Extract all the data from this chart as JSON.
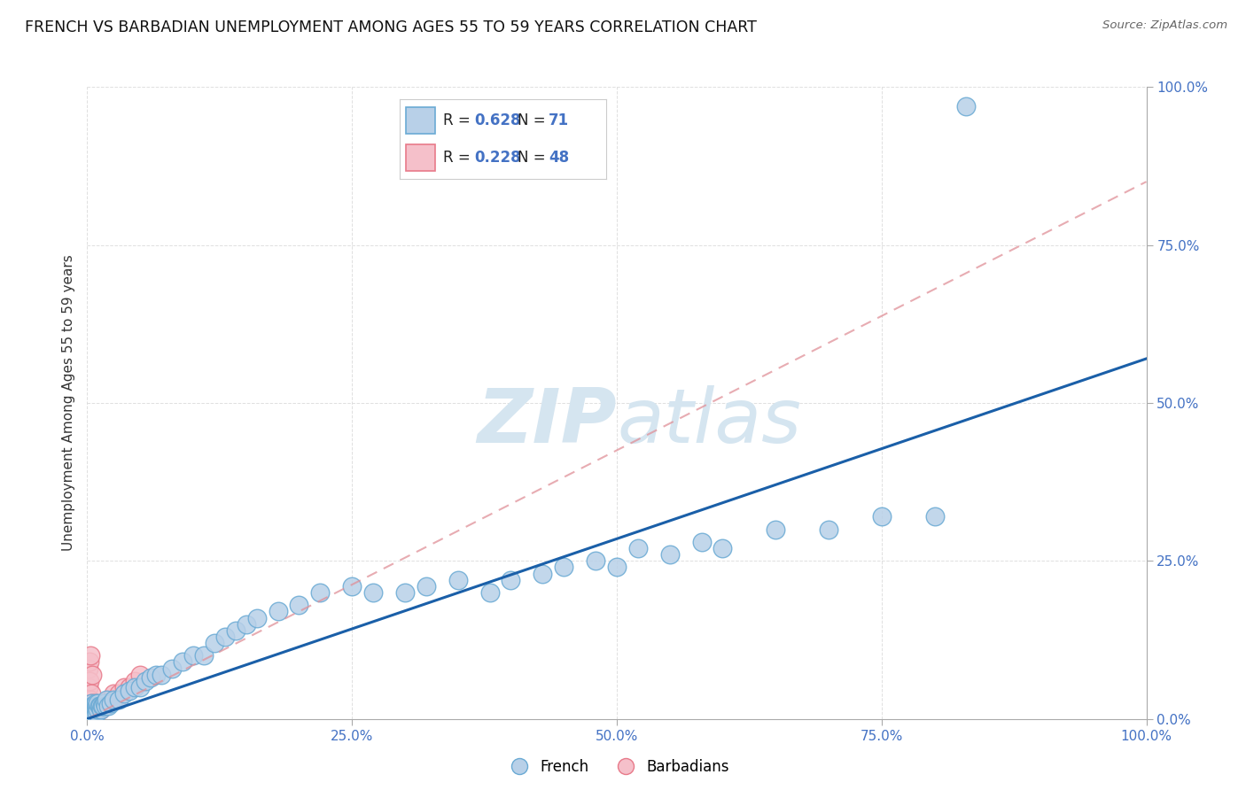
{
  "title": "FRENCH VS BARBADIAN UNEMPLOYMENT AMONG AGES 55 TO 59 YEARS CORRELATION CHART",
  "source": "Source: ZipAtlas.com",
  "ylabel": "Unemployment Among Ages 55 to 59 years",
  "xlim": [
    0.0,
    1.0
  ],
  "ylim": [
    0.0,
    1.0
  ],
  "xtick_positions": [
    0.0,
    0.25,
    0.5,
    0.75,
    1.0
  ],
  "xtick_labels": [
    "0.0%",
    "25.0%",
    "50.0%",
    "75.0%",
    "100.0%"
  ],
  "ytick_positions": [
    0.0,
    0.25,
    0.5,
    0.75,
    1.0
  ],
  "ytick_labels": [
    "0.0%",
    "25.0%",
    "50.0%",
    "75.0%",
    "100.0%"
  ],
  "french_color": "#b8d0e8",
  "french_edge_color": "#6aaad4",
  "barbadian_color": "#f5c0ca",
  "barbadian_edge_color": "#e87a8a",
  "french_R": 0.628,
  "french_N": 71,
  "barbadian_R": 0.228,
  "barbadian_N": 48,
  "french_line_color": "#1a5fa8",
  "barbadian_line_color": "#e09098",
  "watermark_color": "#d5e5f0",
  "background_color": "#ffffff",
  "grid_color": "#d8d8d8",
  "title_fontsize": 12.5,
  "axis_label_fontsize": 11,
  "tick_fontsize": 11,
  "french_line_slope": 0.57,
  "french_line_intercept": 0.0,
  "barbadian_line_slope": 0.85,
  "barbadian_line_intercept": 0.0,
  "french_scatter_x": [
    0.001,
    0.002,
    0.003,
    0.003,
    0.004,
    0.004,
    0.005,
    0.005,
    0.005,
    0.006,
    0.006,
    0.007,
    0.007,
    0.008,
    0.008,
    0.009,
    0.009,
    0.01,
    0.01,
    0.011,
    0.012,
    0.013,
    0.014,
    0.015,
    0.016,
    0.017,
    0.018,
    0.02,
    0.022,
    0.025,
    0.03,
    0.035,
    0.04,
    0.045,
    0.05,
    0.055,
    0.06,
    0.065,
    0.07,
    0.08,
    0.09,
    0.1,
    0.11,
    0.12,
    0.13,
    0.14,
    0.15,
    0.16,
    0.18,
    0.2,
    0.22,
    0.25,
    0.27,
    0.3,
    0.32,
    0.35,
    0.38,
    0.4,
    0.43,
    0.45,
    0.48,
    0.5,
    0.52,
    0.55,
    0.58,
    0.6,
    0.65,
    0.7,
    0.75,
    0.8,
    0.83
  ],
  "french_scatter_y": [
    0.01,
    0.015,
    0.008,
    0.02,
    0.01,
    0.025,
    0.01,
    0.015,
    0.02,
    0.015,
    0.02,
    0.01,
    0.02,
    0.015,
    0.025,
    0.01,
    0.02,
    0.015,
    0.025,
    0.02,
    0.02,
    0.015,
    0.02,
    0.02,
    0.025,
    0.02,
    0.03,
    0.02,
    0.025,
    0.03,
    0.03,
    0.04,
    0.045,
    0.05,
    0.05,
    0.06,
    0.065,
    0.07,
    0.07,
    0.08,
    0.09,
    0.1,
    0.1,
    0.12,
    0.13,
    0.14,
    0.15,
    0.16,
    0.17,
    0.18,
    0.2,
    0.21,
    0.2,
    0.2,
    0.21,
    0.22,
    0.2,
    0.22,
    0.23,
    0.24,
    0.25,
    0.24,
    0.27,
    0.26,
    0.28,
    0.27,
    0.3,
    0.3,
    0.32,
    0.32,
    0.97
  ],
  "barbadian_scatter_x": [
    0.001,
    0.001,
    0.001,
    0.001,
    0.001,
    0.001,
    0.001,
    0.002,
    0.002,
    0.002,
    0.002,
    0.002,
    0.003,
    0.003,
    0.003,
    0.003,
    0.004,
    0.004,
    0.004,
    0.005,
    0.005,
    0.005,
    0.006,
    0.006,
    0.007,
    0.007,
    0.008,
    0.008,
    0.009,
    0.009,
    0.01,
    0.01,
    0.011,
    0.012,
    0.013,
    0.014,
    0.015,
    0.016,
    0.018,
    0.02,
    0.022,
    0.025,
    0.028,
    0.03,
    0.035,
    0.04,
    0.045,
    0.05
  ],
  "barbadian_scatter_y": [
    0.01,
    0.015,
    0.02,
    0.025,
    0.03,
    0.05,
    0.08,
    0.01,
    0.015,
    0.02,
    0.06,
    0.09,
    0.01,
    0.02,
    0.03,
    0.1,
    0.01,
    0.02,
    0.04,
    0.015,
    0.025,
    0.07,
    0.01,
    0.02,
    0.015,
    0.025,
    0.01,
    0.02,
    0.015,
    0.02,
    0.015,
    0.02,
    0.015,
    0.02,
    0.015,
    0.02,
    0.025,
    0.02,
    0.025,
    0.03,
    0.03,
    0.04,
    0.03,
    0.04,
    0.05,
    0.05,
    0.06,
    0.07
  ]
}
